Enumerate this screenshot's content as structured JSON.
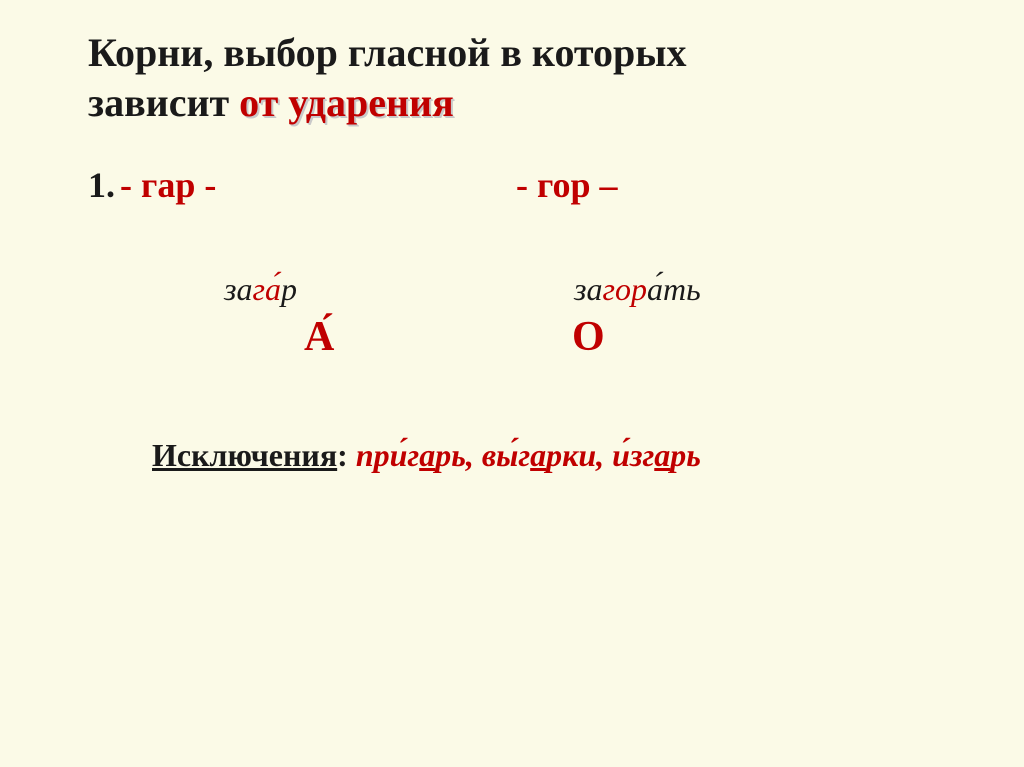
{
  "colors": {
    "slide_bg": "#fbfae7",
    "text": "#1a1a1a",
    "accent": "#c00000",
    "shadow": "#c9c9c9"
  },
  "typography": {
    "title_fontsize": 40,
    "body_fontsize": 36,
    "example_fontsize": 32,
    "letter_fontsize": 42,
    "font_family": "Times New Roman"
  },
  "title": {
    "line1": "Корни, выбор гласной в которых",
    "line2_plain": "зависит ",
    "line2_emph": "от ударения"
  },
  "item": {
    "number": "1.",
    "root_left": "- гар -",
    "root_right": "- гор –",
    "example_left": {
      "prefix": "за",
      "root": "га́",
      "suffix": "р"
    },
    "example_right": {
      "prefix": "за",
      "root": "гор",
      "suffix": "а́ть"
    },
    "letter_left": "А",
    "letter_right": "О"
  },
  "exceptions": {
    "label": "Исключения",
    "colon": ": ",
    "w1": {
      "p1": "при́г",
      "u": "а",
      "p2": "рь"
    },
    "w2": {
      "p1": "вы́г",
      "u": "а",
      "p2": "рки"
    },
    "w3": {
      "p1": "и́зг",
      "u": "а",
      "p2": "рь"
    },
    "sep": ", "
  }
}
